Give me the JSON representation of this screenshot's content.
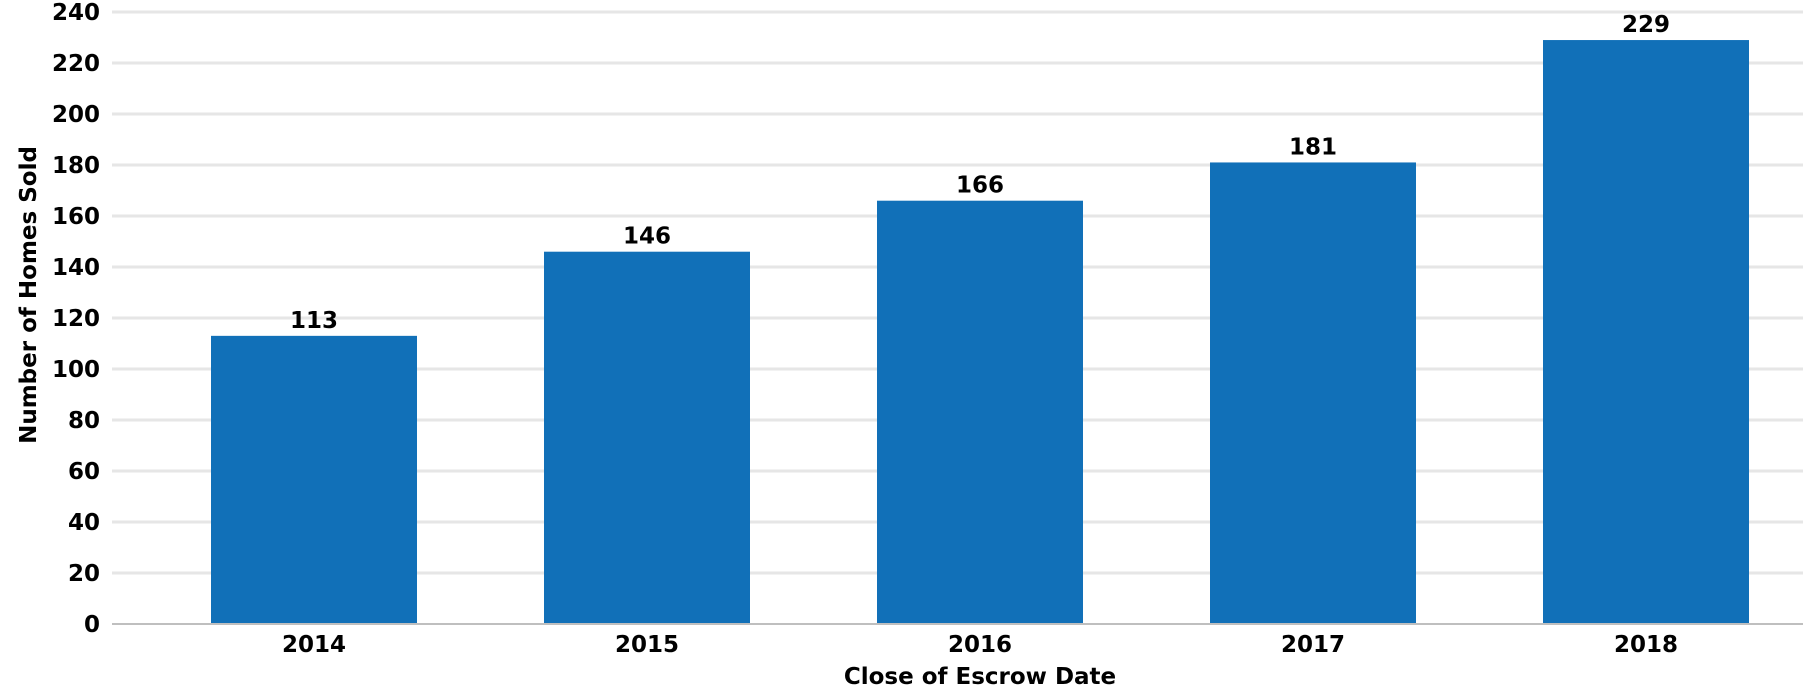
{
  "chart_data": {
    "type": "bar",
    "categories": [
      "2014",
      "2015",
      "2016",
      "2017",
      "2018"
    ],
    "values": [
      113,
      146,
      166,
      181,
      229
    ],
    "data_labels": [
      "113",
      "146",
      "166",
      "181",
      "229"
    ],
    "title": "",
    "xlabel": "Close of Escrow Date",
    "ylabel": "Number of Homes Sold",
    "ylim": [
      0,
      240
    ],
    "yticks": [
      0,
      20,
      40,
      60,
      80,
      100,
      120,
      140,
      160,
      180,
      200,
      220,
      240
    ],
    "grid": true,
    "legend": "none",
    "bar_color": "#1170b8"
  }
}
